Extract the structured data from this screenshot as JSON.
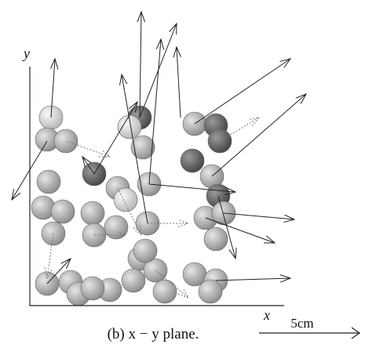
{
  "figure": {
    "y_axis_label": "y",
    "x_axis_label": "x",
    "caption": "(b) x − y plane.",
    "scale_label": "5cm"
  }
}
